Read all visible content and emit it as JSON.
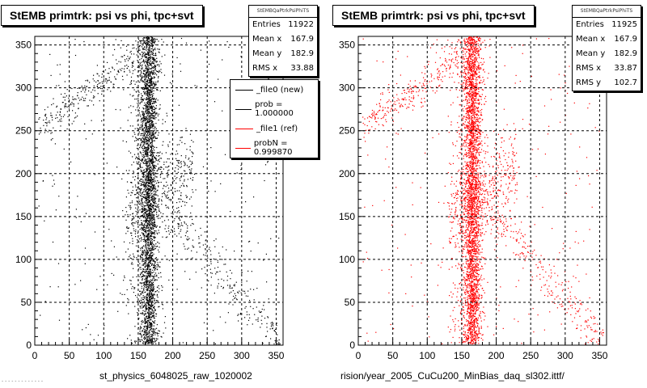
{
  "chart_data": [
    {
      "type": "scatter",
      "title": "StEMB primtrk: psi vs phi, tpc+svt",
      "xlabel_file": "st_physics_6048025_raw_1020002",
      "xlim": [
        0,
        360
      ],
      "ylim": [
        0,
        360
      ],
      "xticks": [
        0,
        50,
        100,
        150,
        200,
        250,
        300,
        350
      ],
      "yticks": [
        0,
        50,
        100,
        150,
        200,
        250,
        300,
        350
      ],
      "grid": true,
      "color": "#000000",
      "stats": {
        "header": "StEMBQaPtrkPsiPhiTS",
        "rows": [
          {
            "label": "Entries",
            "value": "11922"
          },
          {
            "label": "Mean x",
            "value": "167.9"
          },
          {
            "label": "Mean y",
            "value": "182.9"
          },
          {
            "label": "RMS x",
            "value": "33.88"
          }
        ]
      },
      "legend": [
        {
          "label": "_file0 (new)",
          "color": "#000000"
        },
        {
          "label": "prob = 1.000000",
          "color": "#000000"
        },
        {
          "label": "_file1 (ref)",
          "color": "#ff0000"
        },
        {
          "label": "probN = 0.999870",
          "color": "#ff0000"
        }
      ]
    },
    {
      "type": "scatter",
      "title": "StEMB primtrk: psi vs phi, tpc+svt",
      "xlabel_file": "rision/year_2005_CuCu200_MinBias_daq_sl302.ittf/",
      "xlim": [
        0,
        360
      ],
      "ylim": [
        0,
        360
      ],
      "xticks": [
        0,
        50,
        100,
        150,
        200,
        250,
        300,
        350
      ],
      "yticks": [
        0,
        50,
        100,
        150,
        200,
        250,
        300,
        350
      ],
      "grid": true,
      "color": "#ff0000",
      "stats": {
        "header": "StEMBQaPtrkPsiPhiTS",
        "rows": [
          {
            "label": "Entries",
            "value": "11925"
          },
          {
            "label": "Mean x",
            "value": "167.9"
          },
          {
            "label": "Mean y",
            "value": "182.9"
          },
          {
            "label": "RMS x",
            "value": "33.87"
          },
          {
            "label": "RMS y",
            "value": "102.7"
          }
        ]
      }
    }
  ],
  "footnote": "- - - - - - - - - - - - -"
}
